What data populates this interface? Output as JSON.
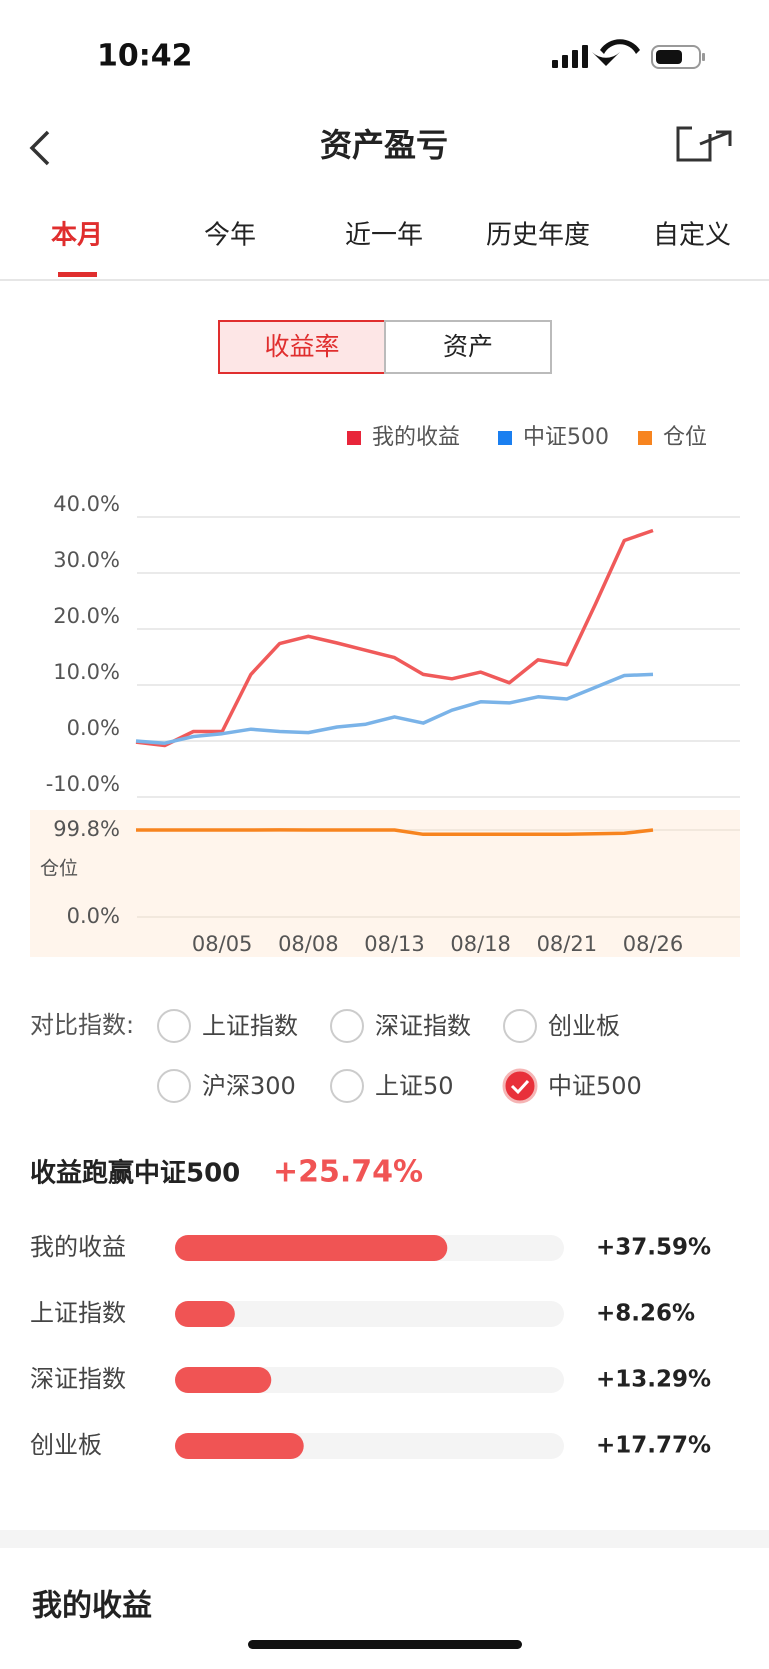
{
  "status_bar": {
    "time": "10:42"
  },
  "header": {
    "title": "资产盈亏"
  },
  "tabs": [
    "本月",
    "今年",
    "近一年",
    "历史年度",
    "自定义"
  ],
  "toggle": [
    "收益率",
    "资产"
  ],
  "chart_data": {
    "type": "line",
    "categories": [
      null,
      null,
      null,
      "08/05",
      null,
      null,
      "08/08",
      null,
      null,
      "08/13",
      null,
      null,
      "08/18",
      null,
      null,
      "08/21",
      null,
      null,
      "08/26"
    ],
    "series": [
      {
        "name": "我的收益",
        "color": "#f05a5a",
        "values": [
          -0.2,
          -0.8,
          1.7,
          1.7,
          11.9,
          17.4,
          18.7,
          17.5,
          16.2,
          14.9,
          11.9,
          11.1,
          12.3,
          10.4,
          14.5,
          13.6,
          24.5,
          35.8,
          37.59
        ]
      },
      {
        "name": "中证500",
        "color": "#7ab3e8",
        "values": [
          0,
          -0.4,
          0.8,
          1.3,
          2.1,
          1.7,
          1.5,
          2.5,
          3.0,
          4.3,
          3.2,
          5.5,
          7.0,
          6.8,
          7.9,
          7.5,
          9.6,
          11.7,
          11.9
        ]
      },
      {
        "name": "仓位",
        "color": "#f7841f",
        "axis": "y2",
        "values": [
          99.8,
          99.8,
          99.8,
          99.8,
          99.8,
          99.9,
          99.8,
          99.8,
          99.8,
          99.8,
          94.9,
          94.9,
          94.9,
          94.9,
          94.9,
          94.9,
          95.5,
          96.0,
          99.8
        ]
      }
    ],
    "legend_colors": [
      "#e8253a",
      "#1a7ff0",
      "#f7841f"
    ],
    "ylim": [
      -10,
      40
    ],
    "yticks": [
      {
        "value": 40,
        "label": "40.0%"
      },
      {
        "value": 30,
        "label": "30.0%"
      },
      {
        "value": 20,
        "label": "20.0%"
      },
      {
        "value": 10,
        "label": "10.0%"
      },
      {
        "value": 0,
        "label": "0.0%"
      },
      {
        "value": -10,
        "label": "-10.0%"
      }
    ],
    "y2_label": "仓位",
    "y2lim": [
      0,
      99.8
    ],
    "y2ticks": [
      {
        "value": 99.8,
        "label": "99.8%"
      },
      {
        "value": 0,
        "label": "0.0%"
      }
    ],
    "grid": true
  },
  "compare": {
    "label": "对比指数:",
    "options": [
      {
        "name": "上证指数",
        "checked": false
      },
      {
        "name": "深证指数",
        "checked": false
      },
      {
        "name": "创业板",
        "checked": false
      },
      {
        "name": "沪深300",
        "checked": false
      },
      {
        "name": "上证50",
        "checked": false
      },
      {
        "name": "中证500",
        "checked": true
      }
    ]
  },
  "summary": {
    "title": "收益跑赢中证500",
    "value": "+25.74%"
  },
  "bars": {
    "categories": [
      "我的收益",
      "上证指数",
      "深证指数",
      "创业板"
    ],
    "values": [
      37.59,
      8.26,
      13.29,
      17.77
    ],
    "value_labels": [
      "+37.59%",
      "+8.26%",
      "+13.29%",
      "+17.77%"
    ],
    "color": "#f05454"
  },
  "section": {
    "title": "我的收益"
  }
}
